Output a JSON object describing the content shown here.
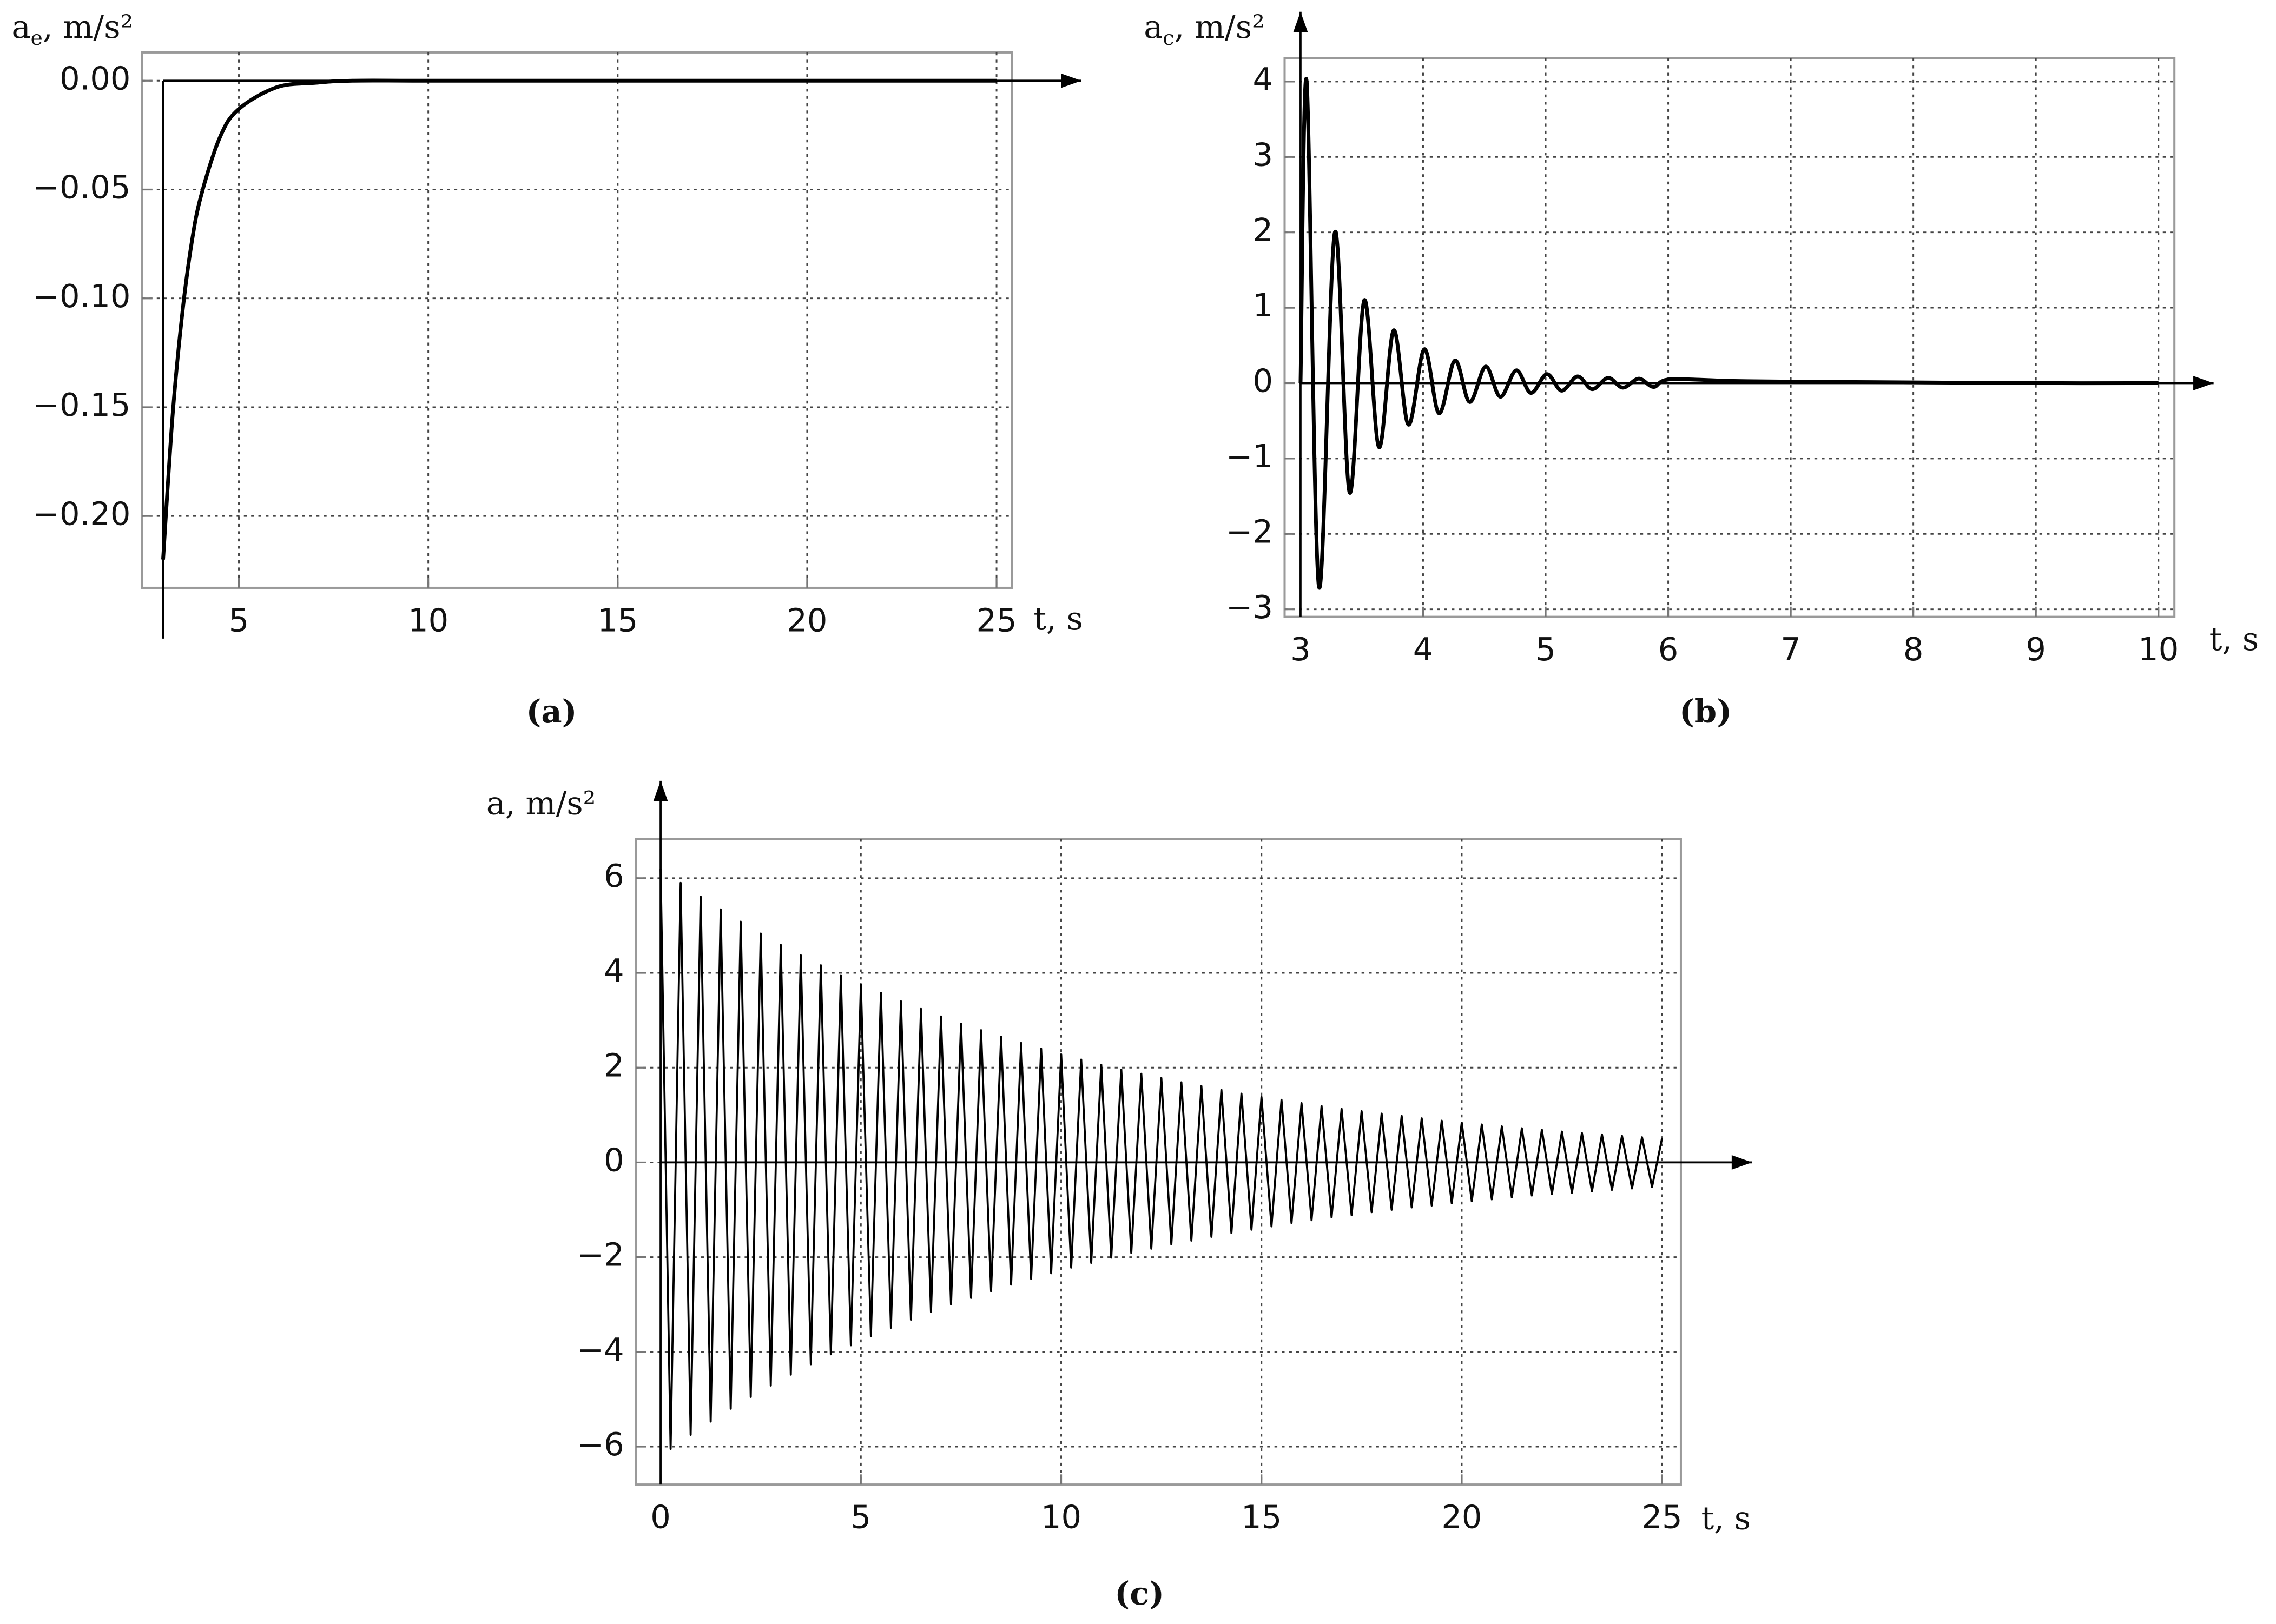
{
  "chart_data": [
    {
      "type": "line",
      "caption": "(a)",
      "y_label": "a",
      "y_label_subscript": "e",
      "y_label_unit": ", m/s²",
      "x_label": "t, s",
      "x": [
        3,
        3.25,
        3.5,
        3.75,
        4,
        4.5,
        5,
        6,
        7,
        8,
        10,
        15,
        20,
        25
      ],
      "values": [
        -0.22,
        -0.154,
        -0.108,
        -0.075,
        -0.053,
        -0.026,
        -0.013,
        -0.003,
        -0.001,
        0,
        0,
        0,
        0,
        0
      ],
      "color": "#000000",
      "xlim": [
        2.45,
        25.4
      ],
      "ylim": [
        -0.233,
        0.013
      ],
      "xticks": [
        5,
        10,
        15,
        20,
        25
      ],
      "yticks": [
        {
          "value": 0,
          "label": "0.00"
        },
        {
          "value": -0.05,
          "label": "−0.05"
        },
        {
          "value": -0.1,
          "label": "−0.10"
        },
        {
          "value": -0.15,
          "label": "−0.15"
        },
        {
          "value": -0.2,
          "label": "−0.20"
        }
      ],
      "grid": true
    },
    {
      "type": "line",
      "caption": "(b)",
      "y_label": "a",
      "y_label_subscript": "c",
      "y_label_unit": ", m/s²",
      "x_label": "t, s",
      "x": [
        3,
        3.05,
        3.15,
        3.28,
        3.4,
        3.52,
        3.64,
        3.76,
        3.88,
        4.01,
        4.13,
        4.26,
        4.38,
        4.51,
        4.63,
        4.76,
        4.88,
        5.01,
        5.13,
        5.26,
        5.38,
        5.51,
        5.63,
        5.76,
        5.88,
        6.01,
        6.5,
        7,
        8,
        9,
        10
      ],
      "values": [
        0,
        4,
        -2.7,
        2,
        -1.45,
        1.1,
        -0.85,
        0.7,
        -0.55,
        0.45,
        -0.4,
        0.3,
        -0.25,
        0.22,
        -0.18,
        0.17,
        -0.13,
        0.12,
        -0.1,
        0.09,
        -0.08,
        0.07,
        -0.06,
        0.06,
        -0.05,
        0.05,
        0.03,
        0.02,
        0.01,
        0,
        0
      ],
      "color": "#000000",
      "xlim": [
        2.87,
        10.13
      ],
      "ylim": [
        -3.1,
        4.31
      ],
      "xticks": [
        3,
        4,
        5,
        6,
        7,
        8,
        9,
        10
      ],
      "yticks": [
        {
          "value": -3,
          "label": "−3"
        },
        {
          "value": -2,
          "label": "−2"
        },
        {
          "value": -1,
          "label": "−1"
        },
        0,
        1,
        2,
        3,
        4
      ],
      "grid": true
    },
    {
      "type": "line",
      "caption": "(c)",
      "y_label": "a, m/s²",
      "x_label": "t, s",
      "x": [
        0,
        0.25,
        0.5,
        0.75,
        1,
        1.25,
        1.5,
        1.75,
        2,
        2.25,
        2.5,
        2.75,
        3,
        3.25,
        3.5,
        3.75,
        4,
        4.25,
        4.5,
        4.75,
        5,
        5.25,
        5.5,
        5.75,
        6,
        6.25,
        6.5,
        6.75,
        7,
        7.25,
        7.5,
        7.75,
        8,
        8.25,
        8.5,
        8.75,
        9,
        9.25,
        9.5,
        9.75,
        10,
        10.25,
        10.5,
        10.75,
        11,
        11.25,
        11.5,
        11.75,
        12,
        12.25,
        12.5,
        12.75,
        13,
        13.25,
        13.5,
        13.75,
        14,
        14.25,
        14.5,
        14.75,
        15,
        15.25,
        15.5,
        15.75,
        16,
        16.25,
        16.5,
        16.75,
        17,
        17.25,
        17.5,
        17.75,
        18,
        18.25,
        18.5,
        18.75,
        19,
        19.25,
        19.5,
        19.75,
        20,
        20.25,
        20.5,
        20.75,
        21,
        21.25,
        21.5,
        21.75,
        22,
        22.25,
        22.5,
        22.75,
        23,
        23.25,
        23.5,
        23.75,
        24,
        24.25,
        24.5,
        24.75,
        25
      ],
      "values": [
        6.2,
        -6.05,
        5.9,
        -5.75,
        5.61,
        -5.47,
        5.34,
        -5.2,
        5.08,
        -4.95,
        4.83,
        -4.71,
        4.59,
        -4.48,
        4.37,
        -4.26,
        4.16,
        -4.05,
        3.95,
        -3.86,
        3.76,
        -3.67,
        3.58,
        -3.49,
        3.4,
        -3.32,
        3.24,
        -3.16,
        3.08,
        -3.0,
        2.93,
        -2.86,
        2.79,
        -2.72,
        2.65,
        -2.58,
        2.52,
        -2.46,
        2.4,
        -2.34,
        2.28,
        -2.22,
        2.17,
        -2.12,
        2.06,
        -2.01,
        1.96,
        -1.91,
        1.87,
        -1.82,
        1.78,
        -1.73,
        1.69,
        -1.65,
        1.61,
        -1.57,
        1.53,
        -1.49,
        1.45,
        -1.42,
        1.38,
        -1.35,
        1.32,
        -1.28,
        1.25,
        -1.22,
        1.19,
        -1.16,
        1.13,
        -1.11,
        1.08,
        -1.05,
        1.03,
        -1.0,
        0.98,
        -0.95,
        0.93,
        -0.91,
        0.88,
        -0.86,
        0.84,
        -0.82,
        0.8,
        -0.78,
        0.76,
        -0.74,
        0.72,
        -0.7,
        0.69,
        -0.67,
        0.65,
        -0.64,
        0.62,
        -0.61,
        0.59,
        -0.58,
        0.56,
        -0.55,
        0.53,
        -0.52,
        0.51
      ],
      "color": "#000000",
      "xlim": [
        -0.62,
        25.47
      ],
      "ylim": [
        -6.8,
        6.83
      ],
      "xticks": [
        0,
        5,
        10,
        15,
        20,
        25
      ],
      "yticks": [
        {
          "value": -6,
          "label": "−6"
        },
        {
          "value": -4,
          "label": "−4"
        },
        {
          "value": -2,
          "label": "−2"
        },
        0,
        2,
        4,
        6
      ],
      "grid": true
    }
  ]
}
